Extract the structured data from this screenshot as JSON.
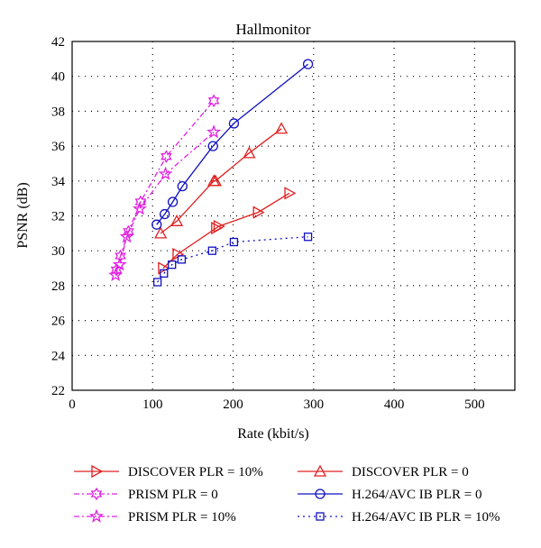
{
  "chart_data": {
    "type": "line",
    "title": "Hallmonitor",
    "xlabel": "Rate (kbit/s)",
    "ylabel": "PSNR (dB)",
    "xlim": [
      0,
      550
    ],
    "ylim": [
      22,
      42
    ],
    "xticks": [
      0,
      100,
      200,
      300,
      400,
      500
    ],
    "yticks": [
      22,
      24,
      26,
      28,
      30,
      32,
      34,
      36,
      38,
      40,
      42
    ],
    "grid": true,
    "legend_placement": "bottom",
    "series": [
      {
        "name": "DISCOVER PLR = 10%",
        "color": "#e02020",
        "dash": "",
        "marker": "tri-right",
        "x": [
          113,
          131,
          179,
          182,
          231,
          270
        ],
        "y": [
          29.0,
          29.8,
          31.3,
          31.4,
          32.2,
          33.3
        ]
      },
      {
        "name": "DISCOVER PLR = 0",
        "color": "#e02020",
        "dash": "",
        "marker": "tri-up",
        "x": [
          110,
          130,
          176,
          178,
          220,
          260
        ],
        "y": [
          31.0,
          31.7,
          34.0,
          34.0,
          35.6,
          37.0
        ]
      },
      {
        "name": "PRISM PLR = 0",
        "color": "#e020e0",
        "dash": "6,3,2,3",
        "marker": "hexagram",
        "x": [
          55,
          60,
          70,
          85,
          117,
          176
        ],
        "y": [
          28.9,
          29.7,
          31.1,
          32.8,
          35.4,
          38.6
        ]
      },
      {
        "name": "H.264/AVC IB PLR = 0",
        "color": "#1010c0",
        "dash": "",
        "marker": "circle",
        "x": [
          105,
          115,
          125,
          137,
          175,
          201,
          293
        ],
        "y": [
          31.5,
          32.1,
          32.8,
          33.7,
          36.0,
          37.3,
          40.7
        ]
      },
      {
        "name": "PRISM PLR = 10%",
        "color": "#e020e0",
        "dash": "6,3,2,3",
        "marker": "star",
        "x": [
          54,
          59,
          68,
          84,
          116,
          176
        ],
        "y": [
          28.6,
          29.2,
          30.8,
          32.4,
          34.4,
          36.8
        ]
      },
      {
        "name": "H.264/AVC IB PLR = 10%",
        "color": "#1010c0",
        "dash": "2,4",
        "marker": "square",
        "x": [
          106,
          114,
          124,
          136,
          174,
          201,
          293
        ],
        "y": [
          28.2,
          28.7,
          29.2,
          29.5,
          30.0,
          30.5,
          30.8
        ]
      }
    ]
  }
}
